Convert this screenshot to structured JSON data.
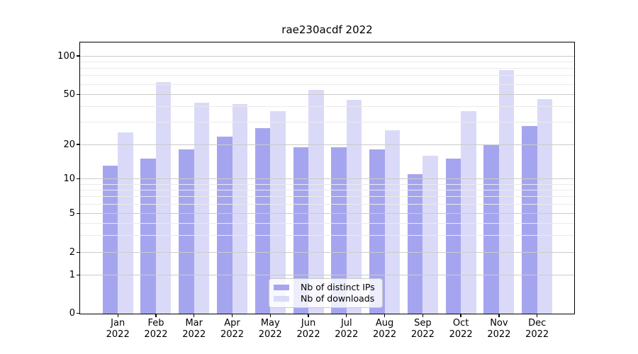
{
  "title": "rae230acdf 2022",
  "chart_data": {
    "type": "bar",
    "title": "rae230acdf 2022",
    "categories": [
      "Jan",
      "Feb",
      "Mar",
      "Apr",
      "May",
      "Jun",
      "Jul",
      "Aug",
      "Sep",
      "Oct",
      "Nov",
      "Dec"
    ],
    "xtick_year": "2022",
    "series": [
      {
        "name": "Nb of distinct IPs",
        "color": "#a5a5ef",
        "values": [
          13,
          15,
          18,
          23,
          27,
          19,
          19,
          18,
          11,
          15,
          20,
          28
        ]
      },
      {
        "name": "Nb of downloads",
        "color": "#dadaf8",
        "values": [
          25,
          62,
          43,
          42,
          37,
          54,
          45,
          26,
          16,
          37,
          77,
          46
        ]
      }
    ],
    "yscale": "symlog",
    "yticks": [
      0,
      1,
      2,
      5,
      10,
      20,
      50,
      100
    ],
    "yminor_gridlines": [
      3,
      4,
      6,
      7,
      8,
      9,
      30,
      40,
      60,
      70,
      80,
      90
    ],
    "ylim": [
      0,
      128
    ],
    "xlabel": "",
    "ylabel": "",
    "grid": true,
    "legend_position": "lower center"
  },
  "colors": {
    "grid_major": "#cbcbcb",
    "grid_minor": "#eaeaea",
    "spine": "#000000",
    "background": "#ffffff"
  }
}
